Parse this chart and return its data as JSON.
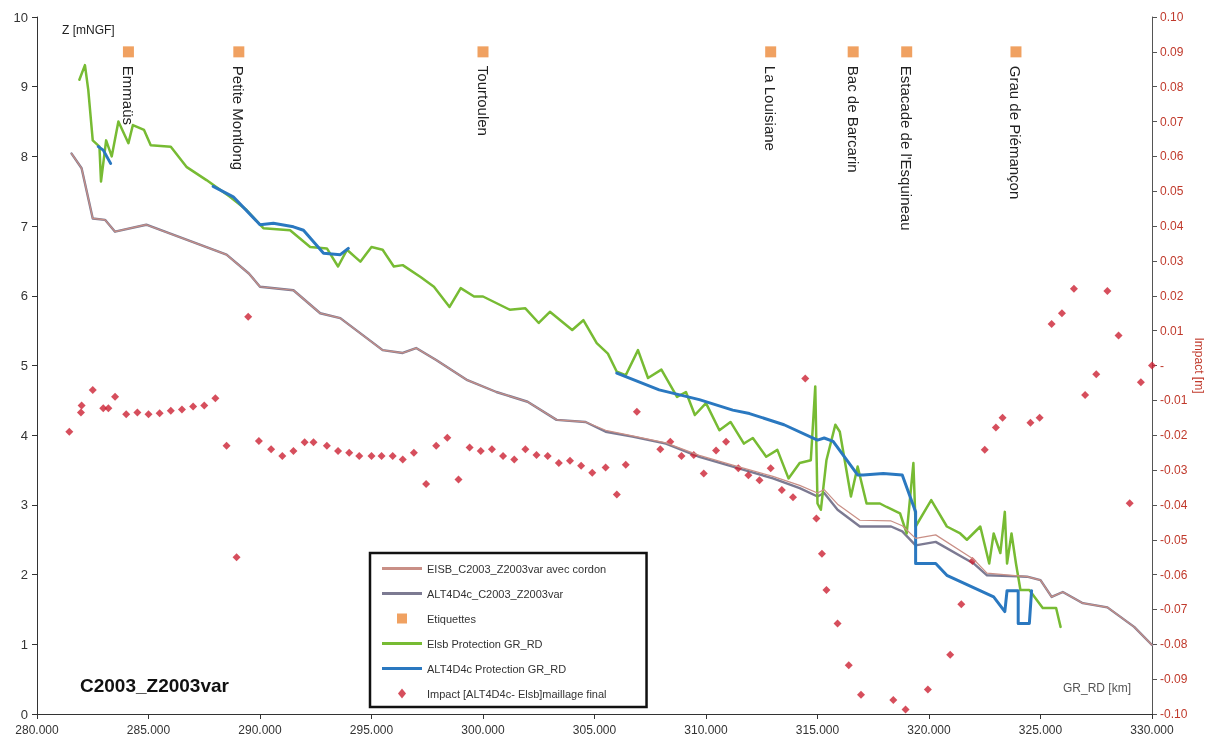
{
  "chart_data": {
    "type": "line",
    "xlabel": "GR_RD [km]",
    "ylabel": "Z [mNGF]",
    "y2label": "Impact [m]",
    "xlim": [
      280,
      330
    ],
    "xticks": [
      {
        "value": 280,
        "label": "280.000"
      },
      {
        "value": 285,
        "label": "285.000"
      },
      {
        "value": 290,
        "label": "290.000"
      },
      {
        "value": 295,
        "label": "295.000"
      },
      {
        "value": 300,
        "label": "300.000"
      },
      {
        "value": 305,
        "label": "305.000"
      },
      {
        "value": 310,
        "label": "310.000"
      },
      {
        "value": 315,
        "label": "315.000"
      },
      {
        "value": 320,
        "label": "320.000"
      },
      {
        "value": 325,
        "label": "325.000"
      },
      {
        "value": 330,
        "label": "330.000"
      }
    ],
    "ylim": [
      0,
      10
    ],
    "yticks": [
      0,
      1,
      2,
      3,
      4,
      5,
      6,
      7,
      8,
      9,
      10
    ],
    "y2lim": [
      -0.1,
      0.1
    ],
    "y2ticks": [
      {
        "value": -0.1,
        "label": "-0.10"
      },
      {
        "value": -0.09,
        "label": "-0.09"
      },
      {
        "value": -0.08,
        "label": "-0.08"
      },
      {
        "value": -0.07,
        "label": "-0.07"
      },
      {
        "value": -0.06,
        "label": "-0.06"
      },
      {
        "value": -0.05,
        "label": "-0.05"
      },
      {
        "value": -0.04,
        "label": "-0.04"
      },
      {
        "value": -0.03,
        "label": "-0.03"
      },
      {
        "value": -0.02,
        "label": "-0.02"
      },
      {
        "value": -0.01,
        "label": "-0.01"
      },
      {
        "value": 0,
        "label": "-"
      },
      {
        "value": 0.01,
        "label": "0.01"
      },
      {
        "value": 0.02,
        "label": "0.02"
      },
      {
        "value": 0.03,
        "label": "0.03"
      },
      {
        "value": 0.04,
        "label": "0.04"
      },
      {
        "value": 0.05,
        "label": "0.05"
      },
      {
        "value": 0.06,
        "label": "0.06"
      },
      {
        "value": 0.07,
        "label": "0.07"
      },
      {
        "value": 0.08,
        "label": "0.08"
      },
      {
        "value": 0.09,
        "label": "0.09"
      },
      {
        "value": 0.1,
        "label": "0.10"
      }
    ],
    "grid": false,
    "legend": "bottom",
    "annotations": [
      "C2003_Z2003var",
      {
        "text": "Emmaüs",
        "x": 284.1,
        "y": 9.5
      },
      {
        "text": "Petite Montlong",
        "x": 289.05,
        "y": 9.5
      },
      {
        "text": "Tourtoulen",
        "x": 300.0,
        "y": 9.5
      },
      {
        "text": "La Louisiane",
        "x": 312.9,
        "y": 9.5
      },
      {
        "text": "Bac de Barcarin",
        "x": 316.6,
        "y": 9.5
      },
      {
        "text": "Estacade de l'Esquineau",
        "x": 319.0,
        "y": 9.5
      },
      {
        "text": "Grau de Piémançon",
        "x": 323.9,
        "y": 9.5
      }
    ],
    "series": [
      {
        "name": "EISB_C2003_Z2003var avec cordon",
        "marker": "none",
        "color": "#c98f86",
        "x": [
          281.55,
          282.0,
          282.5,
          283.05,
          283.5,
          284.9,
          288.5,
          289.5,
          290.0,
          291.5,
          292.7,
          293.6,
          295.5,
          296.4,
          297.0,
          297.9,
          299.3,
          300.6,
          302.0,
          303.3,
          304.6,
          305.5,
          306.7,
          308.2,
          309.7,
          311.2,
          313.0,
          314.2,
          315.0,
          315.3,
          315.9,
          316.9,
          318.3,
          318.8,
          319.4,
          320.3,
          322.0,
          322.6,
          324.4,
          325.0,
          325.5,
          326.0,
          326.9,
          328.0,
          329.2,
          330.0
        ],
        "values": [
          8.04,
          7.83,
          7.11,
          7.09,
          6.92,
          7.02,
          6.59,
          6.32,
          6.13,
          6.08,
          5.75,
          5.68,
          5.22,
          5.18,
          5.25,
          5.08,
          4.79,
          4.62,
          4.48,
          4.22,
          4.19,
          4.07,
          3.99,
          3.89,
          3.71,
          3.57,
          3.41,
          3.28,
          3.17,
          3.22,
          3.01,
          2.78,
          2.77,
          2.7,
          2.52,
          2.57,
          2.22,
          2.02,
          1.97,
          1.92,
          1.68,
          1.75,
          1.59,
          1.53,
          1.25,
          0.99
        ]
      },
      {
        "name": "ALT4D4c_C2003_Z2003var",
        "marker": "none",
        "color": "#7c7a92",
        "x": [
          281.55,
          282.0,
          282.5,
          283.05,
          283.5,
          284.9,
          288.5,
          289.5,
          290.0,
          291.5,
          292.7,
          293.6,
          295.5,
          296.4,
          297.0,
          297.9,
          299.3,
          300.6,
          302.0,
          303.3,
          304.6,
          305.5,
          306.7,
          308.2,
          309.7,
          311.2,
          313.0,
          314.2,
          315.0,
          315.3,
          315.9,
          316.9,
          318.3,
          318.8,
          319.4,
          320.3,
          322.0,
          322.6,
          324.4,
          325.0,
          325.5,
          326.0,
          326.9,
          328.0,
          329.2,
          330.0
        ],
        "values": [
          8.04,
          7.83,
          7.11,
          7.09,
          6.92,
          7.02,
          6.59,
          6.32,
          6.13,
          6.08,
          5.75,
          5.68,
          5.22,
          5.18,
          5.25,
          5.08,
          4.79,
          4.62,
          4.48,
          4.22,
          4.19,
          4.05,
          3.98,
          3.88,
          3.69,
          3.55,
          3.38,
          3.24,
          3.12,
          3.17,
          2.93,
          2.69,
          2.69,
          2.62,
          2.42,
          2.47,
          2.16,
          1.99,
          1.97,
          1.92,
          1.68,
          1.75,
          1.59,
          1.53,
          1.25,
          0.99
        ]
      },
      {
        "name": "Etiquettes",
        "type": "scatter",
        "marker": "square",
        "color": "#ec8a3a",
        "x": [
          284.1,
          289.05,
          300.0,
          312.9,
          316.6,
          319.0,
          323.9
        ],
        "values": [
          9.5,
          9.5,
          9.5,
          9.5,
          9.5,
          9.5,
          9.5
        ]
      },
      {
        "name": "Elsb Protection GR_RD",
        "marker": "none",
        "color": "#77bb33",
        "x": [
          281.9,
          282.15,
          282.3,
          282.5,
          282.8,
          282.87,
          283.1,
          283.35,
          283.65,
          284.1,
          284.3,
          284.8,
          285.1,
          286.0,
          286.7,
          287.6,
          288.65,
          289.4,
          290.15,
          291.35,
          292.25,
          293.0,
          293.5,
          293.9,
          294.5,
          295.0,
          295.5,
          296.0,
          296.4,
          297.2,
          297.8,
          298.5,
          299.0,
          299.6,
          300.0,
          301.2,
          301.9,
          302.5,
          303.0,
          304.0,
          304.5,
          305.1,
          305.6,
          306.0,
          306.4,
          306.95,
          307.4,
          308.0,
          308.7,
          309.1,
          309.5,
          310.0,
          310.6,
          311.1,
          311.7,
          312.1,
          312.7,
          313.2,
          313.7,
          314.2,
          314.7,
          314.9,
          315.0,
          315.15,
          315.4,
          315.8,
          316.0,
          316.5,
          316.8,
          317.2,
          317.8,
          318.1,
          318.7,
          319.0,
          319.3,
          319.4,
          320.1,
          320.8,
          321.4,
          321.7,
          322.3,
          322.7,
          322.9,
          323.2,
          323.4,
          323.5,
          323.7,
          323.9,
          324.1,
          324.5,
          325.1,
          325.7,
          325.9
        ],
        "values": [
          9.1,
          9.31,
          8.95,
          8.23,
          8.14,
          7.64,
          8.23,
          8.0,
          8.5,
          8.19,
          8.45,
          8.38,
          8.16,
          8.14,
          7.85,
          7.66,
          7.42,
          7.23,
          6.97,
          6.94,
          6.7,
          6.68,
          6.42,
          6.66,
          6.49,
          6.7,
          6.66,
          6.42,
          6.44,
          6.27,
          6.13,
          5.84,
          6.11,
          5.99,
          5.99,
          5.8,
          5.82,
          5.61,
          5.77,
          5.51,
          5.65,
          5.32,
          5.17,
          4.91,
          4.86,
          5.22,
          4.82,
          4.94,
          4.55,
          4.62,
          4.29,
          4.46,
          4.07,
          4.19,
          3.88,
          3.96,
          3.69,
          3.79,
          3.38,
          3.6,
          3.64,
          4.7,
          3.02,
          2.93,
          3.64,
          4.15,
          4.05,
          3.12,
          3.55,
          3.02,
          3.02,
          2.97,
          2.88,
          2.59,
          3.6,
          2.69,
          3.07,
          2.69,
          2.59,
          2.5,
          2.69,
          2.16,
          2.59,
          2.31,
          2.9,
          2.16,
          2.59,
          2.16,
          1.78,
          1.78,
          1.52,
          1.52,
          1.25
        ]
      },
      {
        "name": "ALT4D4c Protection GR_RD",
        "marker": "none",
        "color": "#2a78c0",
        "x": [
          282.75,
          282.97,
          283.3,
          283.6,
          287.9,
          288.8,
          290.0,
          290.6,
          291.5,
          291.95,
          292.85,
          293.6,
          293.96,
          300.0,
          306.0,
          307.9,
          309.7,
          311.2,
          311.95,
          313.5,
          315.0,
          315.3,
          315.7,
          316.8,
          317.05,
          317.95,
          318.8,
          319.4,
          319.4,
          320.3,
          320.8,
          322.9,
          323.4,
          323.5,
          324.0,
          324.0,
          324.5,
          324.6
        ],
        "values": [
          8.14,
          8.09,
          7.9,
          null,
          7.57,
          7.42,
          7.02,
          7.04,
          6.99,
          6.94,
          6.61,
          6.59,
          6.68,
          null,
          4.89,
          4.65,
          4.51,
          4.36,
          4.31,
          4.15,
          3.93,
          3.96,
          3.91,
          3.43,
          3.43,
          3.45,
          3.43,
          2.9,
          2.16,
          2.16,
          1.99,
          1.68,
          1.47,
          1.77,
          1.77,
          1.3,
          1.3,
          1.77
        ]
      },
      {
        "name": "Impact [ALT4D4c- Elsb]maillage final",
        "type": "scatter",
        "marker": "diamond",
        "axis": "y2",
        "color": "#cc2233",
        "x": [
          281.45,
          281.97,
          282.0,
          282.5,
          282.97,
          283.2,
          283.5,
          284.0,
          284.5,
          285.0,
          285.5,
          286.0,
          286.5,
          287.0,
          287.5,
          288.0,
          288.5,
          288.95,
          289.47,
          289.95,
          290.5,
          291.0,
          291.5,
          292.0,
          292.4,
          293.0,
          293.5,
          294.0,
          294.45,
          295.0,
          295.45,
          295.95,
          296.4,
          296.9,
          297.45,
          297.9,
          298.4,
          298.9,
          299.4,
          299.9,
          300.4,
          300.9,
          301.4,
          301.9,
          302.4,
          302.9,
          303.4,
          303.9,
          304.4,
          304.9,
          305.5,
          306.0,
          306.4,
          306.9,
          307.95,
          308.4,
          308.9,
          309.45,
          309.9,
          310.45,
          310.9,
          311.45,
          311.9,
          312.4,
          312.9,
          313.4,
          313.9,
          314.45,
          314.95,
          315.2,
          315.4,
          315.9,
          316.4,
          316.95,
          318.4,
          318.95,
          319.95,
          320.95,
          321.45,
          321.95,
          322.5,
          323.0,
          323.3,
          324.55,
          324.96,
          325.5,
          325.96,
          326.5,
          327.0,
          327.5,
          328.0,
          328.5,
          329.0,
          329.5,
          330.0
        ],
        "values": [
          -0.019,
          -0.0135,
          -0.0115,
          -0.007,
          -0.0123,
          -0.0123,
          -0.009,
          -0.014,
          -0.0135,
          -0.014,
          -0.0137,
          -0.013,
          -0.0126,
          -0.0118,
          -0.0115,
          -0.0094,
          -0.023,
          -0.055,
          0.014,
          -0.0217,
          -0.024,
          -0.026,
          -0.0245,
          -0.022,
          -0.022,
          -0.023,
          -0.0245,
          -0.025,
          -0.026,
          -0.026,
          -0.026,
          -0.026,
          -0.027,
          -0.025,
          -0.034,
          -0.023,
          -0.0207,
          -0.0327,
          -0.0235,
          -0.0245,
          -0.024,
          -0.026,
          -0.027,
          -0.024,
          -0.0257,
          -0.026,
          -0.028,
          -0.0273,
          -0.0288,
          -0.0308,
          -0.0293,
          -0.037,
          -0.0285,
          -0.0133,
          -0.024,
          -0.0219,
          -0.026,
          -0.0257,
          -0.031,
          -0.0244,
          -0.0219,
          -0.0295,
          -0.0315,
          -0.0329,
          -0.0295,
          -0.0357,
          -0.0378,
          -0.0037,
          -0.0439,
          -0.054,
          -0.0644,
          -0.074,
          -0.086,
          -0.0945,
          -0.096,
          -0.0987,
          -0.093,
          -0.083,
          -0.0685,
          -0.0561,
          -0.0242,
          -0.0178,
          -0.015,
          -0.0164,
          -0.015,
          0.0119,
          0.015,
          0.022,
          -0.0085,
          -0.0025,
          0.0214,
          0.0086,
          -0.0395,
          -0.0048,
          0.0
        ]
      }
    ]
  }
}
